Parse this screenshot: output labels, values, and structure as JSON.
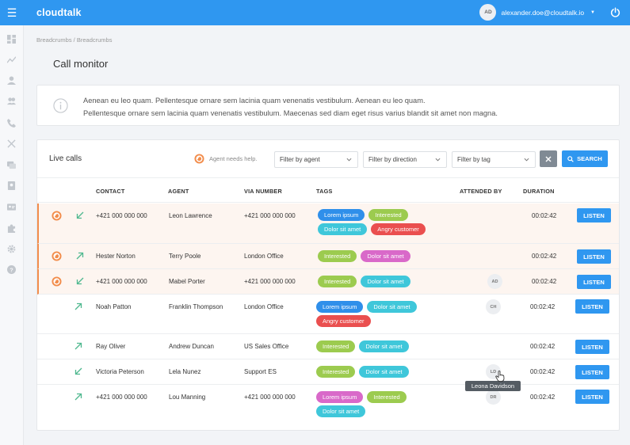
{
  "app": {
    "logo": "cloudtalk"
  },
  "user": {
    "initials": "AD",
    "email": "alexander.doe@cloudtalk.io"
  },
  "breadcrumb": "Breadcrumbs / Breadcrumbs",
  "page_title": "Call monitor",
  "info": {
    "line1": "Aenean eu leo quam. Pellentesque ornare sem lacinia quam venenatis vestibulum. Aenean eu leo quam.",
    "line2": "Pellentesque ornare sem lacinia quam venenatis vestibulum. Maecenas sed diam eget risus varius blandit sit amet non magna."
  },
  "live_calls": {
    "title": "Live calls",
    "legend": "Agent needs help.",
    "filters": {
      "agent": "Filter by agent",
      "direction": "Filter by direction",
      "tag": "Filter by tag"
    },
    "search_label": "SEARCH",
    "columns": {
      "contact": "CONTACT",
      "agent": "AGENT",
      "via_number": "VIA NUMBER",
      "tags": "TAGS",
      "attended_by": "ATTENDED BY",
      "duration": "DURATION"
    },
    "listen_label": "LISTEN",
    "rows": [
      {
        "contact": "+421 000 000 000",
        "agent": "Leon Lawrence",
        "via": "+421 000 000 000",
        "duration": "00:02:42",
        "attended": ""
      },
      {
        "contact": "Hester Norton",
        "agent": "Terry Poole",
        "via": "London Office",
        "duration": "00:02:42",
        "attended": ""
      },
      {
        "contact": "+421 000 000 000",
        "agent": "Mabel Porter",
        "via": "+421 000 000 000",
        "duration": "00:02:42",
        "attended": "AD"
      },
      {
        "contact": "Noah Patton",
        "agent": "Franklin Thompson",
        "via": "London Office",
        "duration": "00:02:42",
        "attended": "CH"
      },
      {
        "contact": "Ray Oliver",
        "agent": "Andrew Duncan",
        "via": "US Sales Office",
        "duration": "00:02:42",
        "attended": ""
      },
      {
        "contact": "Victoria Peterson",
        "agent": "Lela Nunez",
        "via": "Support ES",
        "duration": "00:02:42",
        "attended": "LD"
      },
      {
        "contact": "+421 000 000 000",
        "agent": "Lou Manning",
        "via": "+421 000 000 000",
        "duration": "00:02:42",
        "attended": "DR"
      }
    ],
    "tags": {
      "r0": [
        "Lorem ipsum",
        "Interested",
        "Dolor sit amet",
        "Angry customer"
      ],
      "r1": [
        "Interested",
        "Dolor sit amet"
      ],
      "r2": [
        "Interested",
        "Dolor sit amet"
      ],
      "r3": [
        "Lorem ipsum",
        "Dolor sit amet",
        "Angry customer"
      ],
      "r4": [
        "Interested",
        "Dolor sit amet"
      ],
      "r5": [
        "Interested",
        "Dolor sit amet"
      ],
      "r6": [
        "Lorem ipsum",
        "Interested",
        "Dolor sit amet"
      ]
    },
    "tooltip": "Leona Davidson"
  },
  "colors": {
    "primary": "#2f97f0",
    "need_help": "#f28d4c",
    "direction": "#4fb88f",
    "tag_lorem": "#2f8fea",
    "tag_interested": "#9ccb4f",
    "tag_dolor": "#3fc7da",
    "tag_angry": "#ea4f4f",
    "tag_pink": "#d969c9"
  }
}
